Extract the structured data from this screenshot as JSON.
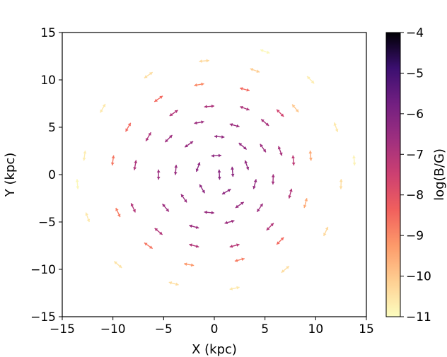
{
  "chart_data": {
    "type": "quiver",
    "title": "",
    "xlabel": "X (kpc)",
    "ylabel": "Y (kpc)",
    "xlim": [
      -15,
      15
    ],
    "ylim": [
      -15,
      15
    ],
    "xticks": [
      -15,
      -10,
      -5,
      0,
      5,
      10,
      15
    ],
    "yticks": [
      -15,
      -10,
      -5,
      0,
      5,
      10,
      15
    ],
    "xtick_labels": [
      "−15",
      "−10",
      "−5",
      "0",
      "5",
      "10",
      "15"
    ],
    "ytick_labels": [
      "−15",
      "−10",
      "−5",
      "0",
      "5",
      "10",
      "15"
    ],
    "grid": false,
    "colormap": "magma",
    "colorbar": {
      "label": "log(B/G)",
      "range": [
        -11,
        -4
      ],
      "ticks": [
        -4,
        -5,
        -6,
        -7,
        -8,
        -9,
        -10,
        -11
      ],
      "tick_labels": [
        "−4",
        "−5",
        "−6",
        "−7",
        "−8",
        "−9",
        "−10",
        "−11"
      ]
    },
    "field_description": "Double-headed arrows tracing a spiral field pattern; arrows near the centre are dark purple (~-6.5) and fade to pale yellow (~-10.5) toward the outskirts (R ~ 14 kpc).",
    "arrow_length_kpc": 1.0,
    "vectors": [
      {
        "x": 0.5,
        "y": 0.0,
        "angle": 93,
        "logB": -6.2
      },
      {
        "x": 1.8,
        "y": 0.3,
        "angle": 95,
        "logB": -6.3
      },
      {
        "x": 0.2,
        "y": 2.0,
        "angle": 183,
        "logB": -6.3
      },
      {
        "x": -1.6,
        "y": 0.8,
        "angle": 250,
        "logB": -6.3
      },
      {
        "x": -1.2,
        "y": -1.5,
        "angle": 300,
        "logB": -6.3
      },
      {
        "x": 1.2,
        "y": -1.8,
        "angle": 30,
        "logB": -6.3
      },
      {
        "x": 3.2,
        "y": 1.0,
        "angle": 110,
        "logB": -6.4
      },
      {
        "x": 2.8,
        "y": 3.0,
        "angle": 140,
        "logB": -6.4
      },
      {
        "x": 0.5,
        "y": 4.0,
        "angle": 175,
        "logB": -6.4
      },
      {
        "x": -2.5,
        "y": 3.2,
        "angle": 215,
        "logB": -6.5
      },
      {
        "x": -3.8,
        "y": 0.5,
        "angle": 265,
        "logB": -6.5
      },
      {
        "x": -3.0,
        "y": -2.5,
        "angle": 305,
        "logB": -6.5
      },
      {
        "x": -0.5,
        "y": -4.0,
        "angle": 355,
        "logB": -6.5
      },
      {
        "x": 2.5,
        "y": -3.2,
        "angle": 35,
        "logB": -6.5
      },
      {
        "x": 4.0,
        "y": -1.0,
        "angle": 75,
        "logB": -6.4
      },
      {
        "x": 4.8,
        "y": 2.8,
        "angle": 125,
        "logB": -6.6
      },
      {
        "x": 2.0,
        "y": 5.2,
        "angle": 165,
        "logB": -6.6
      },
      {
        "x": -1.5,
        "y": 5.5,
        "angle": 190,
        "logB": -6.6
      },
      {
        "x": -4.5,
        "y": 3.8,
        "angle": 225,
        "logB": -6.6
      },
      {
        "x": -5.5,
        "y": 0.0,
        "angle": 270,
        "logB": -6.6
      },
      {
        "x": -4.8,
        "y": -3.5,
        "angle": 310,
        "logB": -6.6
      },
      {
        "x": -2.0,
        "y": -5.5,
        "angle": 345,
        "logB": -6.6
      },
      {
        "x": 1.5,
        "y": -5.0,
        "angle": 15,
        "logB": -6.6
      },
      {
        "x": 4.5,
        "y": -3.5,
        "angle": 55,
        "logB": -6.6
      },
      {
        "x": 5.8,
        "y": -0.5,
        "angle": 88,
        "logB": -6.7
      },
      {
        "x": 6.5,
        "y": 2.5,
        "angle": 110,
        "logB": -6.8
      },
      {
        "x": 5.0,
        "y": 5.5,
        "angle": 140,
        "logB": -6.8
      },
      {
        "x": 3.0,
        "y": 7.0,
        "angle": 160,
        "logB": -6.9
      },
      {
        "x": -0.5,
        "y": 7.2,
        "angle": 185,
        "logB": -6.9
      },
      {
        "x": -4.0,
        "y": 6.5,
        "angle": 215,
        "logB": -7.0
      },
      {
        "x": -6.5,
        "y": 4.0,
        "angle": 240,
        "logB": -6.9
      },
      {
        "x": -7.8,
        "y": 1.0,
        "angle": 260,
        "logB": -6.9
      },
      {
        "x": -8.0,
        "y": -3.5,
        "angle": 295,
        "logB": -7.0
      },
      {
        "x": -5.5,
        "y": -6.0,
        "angle": 320,
        "logB": -7.0
      },
      {
        "x": -2.0,
        "y": -7.5,
        "angle": 345,
        "logB": -7.0
      },
      {
        "x": 2.0,
        "y": -7.5,
        "angle": 15,
        "logB": -7.1
      },
      {
        "x": 5.5,
        "y": -5.5,
        "angle": 45,
        "logB": -7.0
      },
      {
        "x": 7.5,
        "y": -2.0,
        "angle": 75,
        "logB": -7.0
      },
      {
        "x": 7.8,
        "y": 1.5,
        "angle": 95,
        "logB": -7.2
      },
      {
        "x": 6.5,
        "y": 6.5,
        "angle": 135,
        "logB": -7.6
      },
      {
        "x": 3.0,
        "y": 9.0,
        "angle": 165,
        "logB": -8.5
      },
      {
        "x": -1.5,
        "y": 9.5,
        "angle": 190,
        "logB": -9.0
      },
      {
        "x": -5.5,
        "y": 8.0,
        "angle": 215,
        "logB": -8.5
      },
      {
        "x": -8.5,
        "y": 5.0,
        "angle": 240,
        "logB": -8.5
      },
      {
        "x": -10.0,
        "y": 1.5,
        "angle": 262,
        "logB": -8.7
      },
      {
        "x": -9.5,
        "y": -4.0,
        "angle": 295,
        "logB": -8.8
      },
      {
        "x": -6.5,
        "y": -7.5,
        "angle": 325,
        "logB": -8.7
      },
      {
        "x": -2.5,
        "y": -9.5,
        "angle": 350,
        "logB": -9.2
      },
      {
        "x": 2.5,
        "y": -9.0,
        "angle": 15,
        "logB": -8.8
      },
      {
        "x": 6.5,
        "y": -7.0,
        "angle": 45,
        "logB": -8.5
      },
      {
        "x": 9.0,
        "y": -3.0,
        "angle": 75,
        "logB": -9.5
      },
      {
        "x": 9.5,
        "y": 2.0,
        "angle": 95,
        "logB": -9.5
      },
      {
        "x": 8.0,
        "y": 7.0,
        "angle": 130,
        "logB": -10.0
      },
      {
        "x": 4.0,
        "y": 11.0,
        "angle": 160,
        "logB": -10.1
      },
      {
        "x": -1.0,
        "y": 12.0,
        "angle": 185,
        "logB": -10.3
      },
      {
        "x": -6.5,
        "y": 10.5,
        "angle": 215,
        "logB": -10.4
      },
      {
        "x": -11.0,
        "y": 7.0,
        "angle": 240,
        "logB": -10.6
      },
      {
        "x": -12.8,
        "y": 2.0,
        "angle": 262,
        "logB": -10.7
      },
      {
        "x": -12.5,
        "y": -4.5,
        "angle": 290,
        "logB": -10.6
      },
      {
        "x": -9.5,
        "y": -9.5,
        "angle": 320,
        "logB": -10.5
      },
      {
        "x": -4.0,
        "y": -11.5,
        "angle": 345,
        "logB": -10.4
      },
      {
        "x": 2.0,
        "y": -12.0,
        "angle": 12,
        "logB": -10.6
      },
      {
        "x": 7.0,
        "y": -10.0,
        "angle": 40,
        "logB": -10.4
      },
      {
        "x": 11.0,
        "y": -6.0,
        "angle": 65,
        "logB": -10.3
      },
      {
        "x": 12.5,
        "y": -1.0,
        "angle": 88,
        "logB": -10.4
      },
      {
        "x": 12.0,
        "y": 5.0,
        "angle": 110,
        "logB": -10.6
      },
      {
        "x": 9.5,
        "y": 10.0,
        "angle": 135,
        "logB": -10.7
      },
      {
        "x": 5.0,
        "y": 13.0,
        "angle": 160,
        "logB": -10.9
      },
      {
        "x": 13.8,
        "y": 1.5,
        "angle": 95,
        "logB": -10.8
      },
      {
        "x": -13.5,
        "y": -1.0,
        "angle": 275,
        "logB": -10.9
      }
    ]
  }
}
